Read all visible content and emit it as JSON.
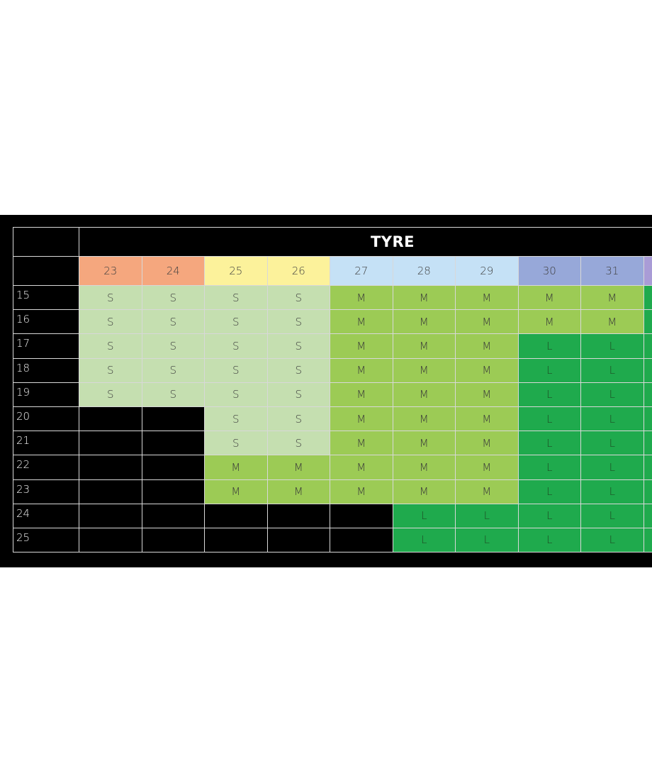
{
  "table": {
    "title": "TYRE",
    "rim_header": "",
    "columns": [
      {
        "label": "23",
        "color": "#f5a77e"
      },
      {
        "label": "24",
        "color": "#f5a77e"
      },
      {
        "label": "25",
        "color": "#fcf29b"
      },
      {
        "label": "26",
        "color": "#fcf29b"
      },
      {
        "label": "27",
        "color": "#c5e1f6"
      },
      {
        "label": "28",
        "color": "#c5e1f6"
      },
      {
        "label": "29",
        "color": "#c5e1f6"
      },
      {
        "label": "30",
        "color": "#97a8d9"
      },
      {
        "label": "31",
        "color": "#97a8d9"
      },
      {
        "label": "",
        "color": "#a99cd6"
      }
    ],
    "rows": [
      {
        "label": "15",
        "cells": [
          "S",
          "S",
          "S",
          "S",
          "M",
          "M",
          "M",
          "M",
          "M",
          ""
        ]
      },
      {
        "label": "16",
        "cells": [
          "S",
          "S",
          "S",
          "S",
          "M",
          "M",
          "M",
          "M",
          "M",
          ""
        ]
      },
      {
        "label": "17",
        "cells": [
          "S",
          "S",
          "S",
          "S",
          "M",
          "M",
          "M",
          "L",
          "L",
          ""
        ]
      },
      {
        "label": "18",
        "cells": [
          "S",
          "S",
          "S",
          "S",
          "M",
          "M",
          "M",
          "L",
          "L",
          ""
        ]
      },
      {
        "label": "19",
        "cells": [
          "S",
          "S",
          "S",
          "S",
          "M",
          "M",
          "M",
          "L",
          "L",
          ""
        ]
      },
      {
        "label": "20",
        "cells": [
          "",
          "",
          "S",
          "S",
          "M",
          "M",
          "M",
          "L",
          "L",
          ""
        ]
      },
      {
        "label": "21",
        "cells": [
          "",
          "",
          "S",
          "S",
          "M",
          "M",
          "M",
          "L",
          "L",
          ""
        ]
      },
      {
        "label": "22",
        "cells": [
          "",
          "",
          "M",
          "M",
          "M",
          "M",
          "M",
          "L",
          "L",
          ""
        ]
      },
      {
        "label": "23",
        "cells": [
          "",
          "",
          "M",
          "M",
          "M",
          "M",
          "M",
          "L",
          "L",
          ""
        ]
      },
      {
        "label": "24",
        "cells": [
          "",
          "",
          "",
          "",
          "",
          "L",
          "L",
          "L",
          "L",
          ""
        ]
      },
      {
        "label": "25",
        "cells": [
          "",
          "",
          "",
          "",
          "",
          "L",
          "L",
          "L",
          "L",
          ""
        ]
      }
    ],
    "cell_types": [
      [
        "S",
        "S",
        "S",
        "S",
        "M",
        "M",
        "M",
        "M",
        "M",
        "L"
      ],
      [
        "S",
        "S",
        "S",
        "S",
        "M",
        "M",
        "M",
        "M",
        "M",
        "L"
      ],
      [
        "S",
        "S",
        "S",
        "S",
        "M",
        "M",
        "M",
        "L",
        "L",
        "L"
      ],
      [
        "S",
        "S",
        "S",
        "S",
        "M",
        "M",
        "M",
        "L",
        "L",
        "L"
      ],
      [
        "S",
        "S",
        "S",
        "S",
        "M",
        "M",
        "M",
        "L",
        "L",
        "L"
      ],
      [
        "X",
        "X",
        "S",
        "S",
        "M",
        "M",
        "M",
        "L",
        "L",
        "L"
      ],
      [
        "X",
        "X",
        "S",
        "S",
        "M",
        "M",
        "M",
        "L",
        "L",
        "L"
      ],
      [
        "X",
        "X",
        "M",
        "M",
        "M",
        "M",
        "M",
        "L",
        "L",
        "L"
      ],
      [
        "X",
        "X",
        "M",
        "M",
        "M",
        "M",
        "M",
        "L",
        "L",
        "L"
      ],
      [
        "X",
        "X",
        "X",
        "X",
        "X",
        "L",
        "L",
        "L",
        "L",
        "L"
      ],
      [
        "X",
        "X",
        "X",
        "X",
        "X",
        "L",
        "L",
        "L",
        "L",
        "L"
      ]
    ]
  },
  "colors": {
    "S": "#c5dfb0",
    "M": "#9ccb55",
    "L": "#1faa4d",
    "background_band": "#000000"
  }
}
